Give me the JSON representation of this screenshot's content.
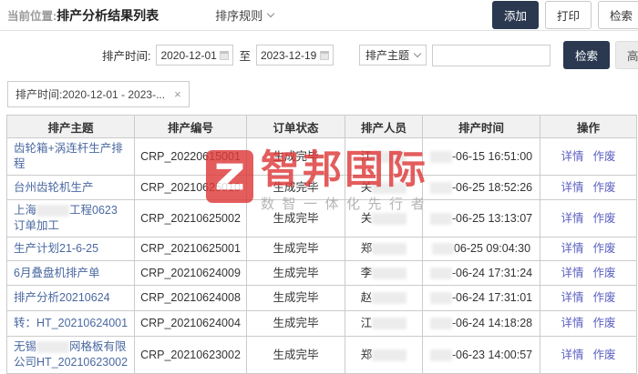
{
  "topbar": {
    "breadcrumb_label": "当前位置:",
    "page_title": "排产分析结果列表",
    "sort_rule_label": "排序规则",
    "add_button": "添加",
    "print_button": "打印",
    "search_button": "检索"
  },
  "filter": {
    "time_label": "排产时间:",
    "date_from": "2020-12-01",
    "to_label": "至",
    "date_to": "2023-12-19",
    "subject_select_value": "排产主题",
    "keyword_value": "",
    "search_button": "检索",
    "advanced_button": "高级"
  },
  "tags": [
    {
      "label": "排产时间:2020-12-01 - 2023-...",
      "close_icon": "×"
    }
  ],
  "table": {
    "headers": [
      "排产主题",
      "排产编号",
      "订单状态",
      "排产人员",
      "排产时间",
      "操作"
    ],
    "action_labels": [
      "详情",
      "作废"
    ],
    "rows": [
      {
        "subject": [
          {
            "t": "齿轮箱+涡连杆生产排程"
          }
        ],
        "code": "CRP_20220615001",
        "status": "生成完毕",
        "person": "江",
        "time": "-06-15 16:51:00"
      },
      {
        "subject": [
          {
            "t": "台州齿轮机生产"
          }
        ],
        "code": "CRP_20210625010",
        "status": "生成完毕",
        "person": "关",
        "time": "-06-25 18:52:26"
      },
      {
        "subject": [
          {
            "t": "上海"
          },
          {
            "blur": true
          },
          {
            "t": "工程0623订单加工"
          }
        ],
        "code": "CRP_20210625002",
        "status": "生成完毕",
        "person": "关",
        "time": "-06-25 13:13:07"
      },
      {
        "subject": [
          {
            "t": "生产计划21-6-25"
          }
        ],
        "code": "CRP_20210625001",
        "status": "生成完毕",
        "person": "郑",
        "time": "06-25 09:04:30"
      },
      {
        "subject": [
          {
            "t": "6月叠盘机排产单"
          }
        ],
        "code": "CRP_20210624009",
        "status": "生成完毕",
        "person": "李",
        "time": "-06-24 17:31:24"
      },
      {
        "subject": [
          {
            "t": "排产分析20210624"
          }
        ],
        "code": "CRP_20210624008",
        "status": "生成完毕",
        "person": "赵",
        "time": "-06-24 17:31:01"
      },
      {
        "subject": [
          {
            "t": "转：HT_20210624001"
          }
        ],
        "code": "CRP_20210624004",
        "status": "生成完毕",
        "person": "江",
        "time": "-06-24 14:18:28"
      },
      {
        "subject": [
          {
            "t": "无锡"
          },
          {
            "blur": true
          },
          {
            "t": "网格板有限公司HT_20210623002"
          }
        ],
        "code": "CRP_20210623002",
        "status": "生成完毕",
        "person": "郑",
        "time": "-06-23 14:00:57"
      }
    ]
  },
  "watermark": {
    "logo_icon": "z-mark",
    "brand": "智邦国际",
    "tagline": "数智一体化先行者"
  },
  "colors": {
    "accent_dark": "#2a3950",
    "link_blue": "#4a68a1",
    "action_indigo": "#5a5fc0",
    "watermark_red": "#df3a3a"
  }
}
